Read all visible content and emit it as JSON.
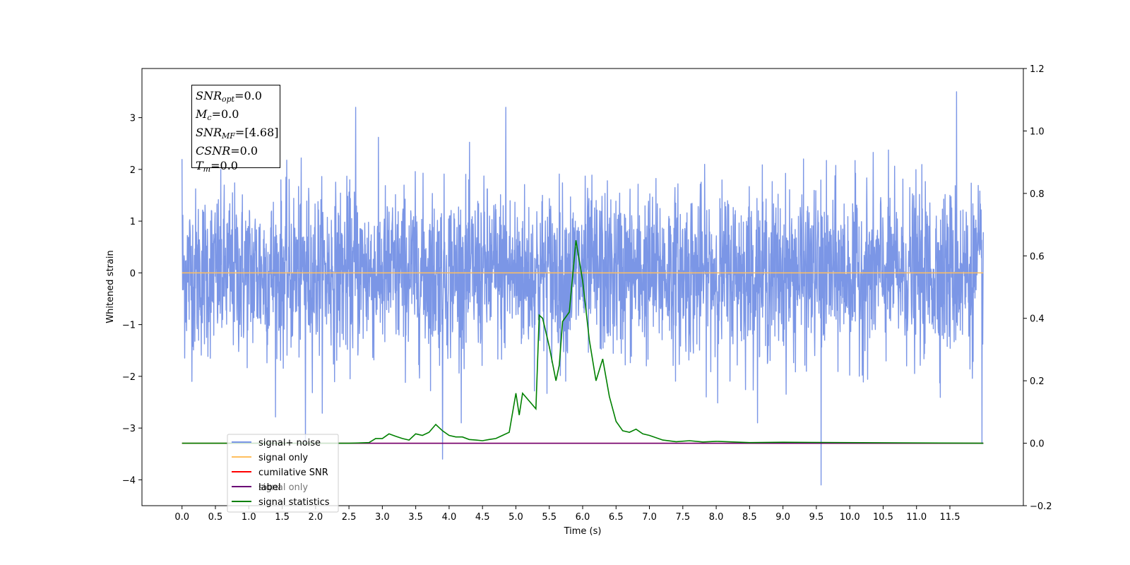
{
  "chart_data": {
    "type": "line",
    "xlabel": "Time (s)",
    "ylabel": "Whitened strain",
    "x_ticks": [
      "0.0",
      "0.5",
      "1.0",
      "1.5",
      "2.0",
      "2.5",
      "3.0",
      "3.5",
      "4.0",
      "4.5",
      "5.0",
      "5.5",
      "6.0",
      "6.5",
      "7.0",
      "7.5",
      "8.0",
      "8.5",
      "9.0",
      "9.5",
      "10.0",
      "10.5",
      "11.0",
      "11.5"
    ],
    "xlim": [
      -0.6,
      12.6
    ],
    "ylim_left": [
      -4.5,
      3.95
    ],
    "y_ticks_left": [
      -4,
      -3,
      -2,
      -1,
      0,
      1,
      2,
      3
    ],
    "ylim_right": [
      -0.2,
      1.2
    ],
    "y_ticks_right": [
      -0.2,
      0.0,
      0.2,
      0.4,
      0.6,
      0.8,
      1.0,
      1.2
    ],
    "legend_position": "lower-left",
    "series": [
      {
        "name": "signal+ noise",
        "axis": "left",
        "color": "#7b96e6",
        "x_range": [
          0.0,
          12.0
        ],
        "approx_std": 0.8,
        "notable_points": [
          {
            "x": 0.0,
            "y": 2.2
          },
          {
            "x": 2.6,
            "y": 3.2
          },
          {
            "x": 4.85,
            "y": 3.2
          },
          {
            "x": 11.6,
            "y": 3.5
          },
          {
            "x": 1.85,
            "y": -3.3
          },
          {
            "x": 3.9,
            "y": -3.6
          },
          {
            "x": 9.57,
            "y": -4.1
          },
          {
            "x": 11.98,
            "y": -3.3
          }
        ]
      },
      {
        "name": "signal only",
        "axis": "left",
        "color": "#ffbf5e",
        "x": [
          0.0,
          12.0
        ],
        "y": [
          0.0,
          0.0
        ]
      },
      {
        "name": "cumilative SNR",
        "axis": "right",
        "color": "#ff0000",
        "x": [
          0.0,
          12.0
        ],
        "y": [
          0.0,
          0.0
        ]
      },
      {
        "name": "label",
        "axis": "right",
        "color": "#6a0075",
        "x": [
          0.7,
          12.0
        ],
        "y": [
          0.0,
          0.0
        ]
      },
      {
        "name": "signal statistics",
        "axis": "right",
        "color": "#008000",
        "x": [
          0.0,
          2.5,
          2.8,
          2.9,
          3.0,
          3.1,
          3.2,
          3.3,
          3.4,
          3.5,
          3.6,
          3.7,
          3.8,
          3.9,
          4.0,
          4.1,
          4.2,
          4.3,
          4.4,
          4.5,
          4.6,
          4.7,
          4.8,
          4.9,
          5.0,
          5.05,
          5.1,
          5.2,
          5.3,
          5.35,
          5.4,
          5.5,
          5.6,
          5.65,
          5.7,
          5.8,
          5.9,
          6.0,
          6.1,
          6.2,
          6.3,
          6.4,
          6.5,
          6.6,
          6.7,
          6.8,
          6.9,
          7.0,
          7.2,
          7.4,
          7.6,
          7.8,
          8.0,
          8.5,
          9.0,
          12.0
        ],
        "y": [
          0.0,
          0.0,
          0.002,
          0.015,
          0.015,
          0.03,
          0.022,
          0.015,
          0.01,
          0.03,
          0.025,
          0.035,
          0.06,
          0.04,
          0.025,
          0.02,
          0.02,
          0.012,
          0.01,
          0.008,
          0.012,
          0.015,
          0.025,
          0.035,
          0.16,
          0.09,
          0.16,
          0.135,
          0.11,
          0.41,
          0.4,
          0.31,
          0.2,
          0.25,
          0.39,
          0.42,
          0.65,
          0.52,
          0.33,
          0.2,
          0.27,
          0.15,
          0.07,
          0.04,
          0.035,
          0.045,
          0.03,
          0.025,
          0.01,
          0.005,
          0.008,
          0.004,
          0.006,
          0.002,
          0.003,
          0.0
        ]
      }
    ]
  },
  "info_box": {
    "snr_opt": {
      "sym": "SNR",
      "sub": "opt",
      "value": "=0.0"
    },
    "mc": {
      "sym": "M",
      "sub": "c",
      "value": "=0.0"
    },
    "snr_mf": {
      "sym": "SNR",
      "sub": "MF",
      "value": "=[4.68]"
    },
    "csnr": {
      "sym": "CSNR",
      "value": "=0.0"
    },
    "tm": {
      "sym": "T",
      "sub": "m",
      "value": "=0.0"
    }
  },
  "legend": {
    "items": [
      "signal+ noise",
      "signal only",
      "cumilative SNR",
      "label",
      "signal statistics"
    ],
    "hidden_text": "signal only"
  }
}
